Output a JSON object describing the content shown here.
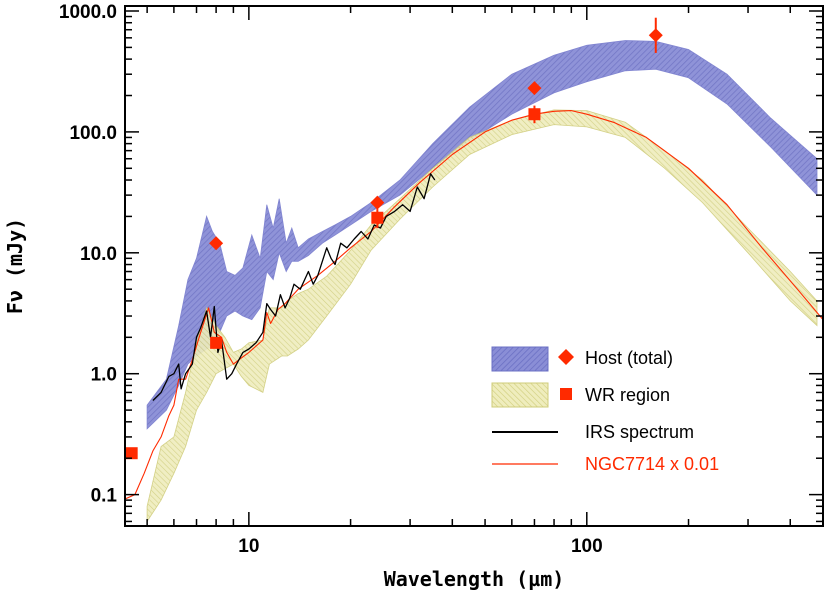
{
  "chart_data": {
    "type": "line",
    "xscale": "log",
    "yscale": "log",
    "xlim": [
      4.3,
      500
    ],
    "ylim": [
      0.055,
      1100
    ],
    "xlabel": "Wavelength (µm)",
    "ylabel": "Fν (mJy)",
    "x_ticks": [
      {
        "value": 10,
        "label": "10"
      },
      {
        "value": 100,
        "label": "100"
      }
    ],
    "y_ticks": [
      {
        "value": 0.1,
        "label": "0.1"
      },
      {
        "value": 1,
        "label": "1.0"
      },
      {
        "value": 10,
        "label": "10.0"
      },
      {
        "value": 100,
        "label": "100.0"
      },
      {
        "value": 1000,
        "label": "1000.0"
      }
    ],
    "colors": {
      "host_band": "#7b7fcf",
      "wr_band": "#e6e4a2",
      "irs_line": "#000000",
      "ngc_line": "#ff2a00",
      "markers": "#ff2a00"
    },
    "series": [
      {
        "name": "Host (total)",
        "kind": "band",
        "x": [
          5,
          5.7,
          6.2,
          6.6,
          7.0,
          7.5,
          7.8,
          8.2,
          8.6,
          9.1,
          9.6,
          10.2,
          10.8,
          11.3,
          11.8,
          12.3,
          12.9,
          13.4,
          14,
          15,
          16.5,
          18,
          20,
          23,
          28,
          35,
          45,
          60,
          80,
          100,
          130,
          160,
          200,
          260,
          350,
          480
        ],
        "upper": [
          0.55,
          0.9,
          2.5,
          6.0,
          9.0,
          20,
          15,
          12,
          7.0,
          6.5,
          7.5,
          14,
          9.0,
          25,
          16,
          28,
          12,
          16,
          11,
          13,
          15,
          17,
          20,
          26,
          40,
          80,
          160,
          300,
          430,
          520,
          570,
          560,
          480,
          300,
          130,
          60
        ],
        "lower": [
          0.35,
          0.5,
          0.8,
          1.2,
          1.4,
          1.6,
          1.7,
          2.2,
          3.0,
          3.3,
          3.0,
          2.8,
          3.5,
          7.0,
          6.0,
          10,
          7.0,
          8.5,
          8.5,
          9.5,
          12,
          14,
          17,
          22,
          30,
          50,
          85,
          140,
          210,
          260,
          320,
          330,
          280,
          170,
          75,
          30
        ]
      },
      {
        "name": "WR region",
        "kind": "band",
        "x": [
          5,
          5.5,
          6.0,
          6.5,
          7.0,
          7.5,
          8.0,
          8.5,
          9.0,
          9.5,
          10,
          11,
          11.5,
          12.5,
          13,
          14,
          15,
          17,
          20,
          23,
          28,
          35,
          45,
          60,
          80,
          100,
          130,
          170,
          220,
          300,
          400,
          480
        ],
        "upper": [
          0.08,
          0.25,
          0.3,
          0.7,
          1.8,
          3.5,
          2.5,
          2.0,
          1.5,
          1.6,
          1.8,
          1.9,
          3.5,
          3.5,
          4.0,
          4.6,
          5.0,
          6.4,
          10.5,
          17,
          28,
          50,
          90,
          125,
          152,
          150,
          120,
          70,
          40,
          16,
          7,
          4
        ],
        "lower": [
          0.06,
          0.09,
          0.15,
          0.25,
          0.5,
          0.7,
          1.0,
          1.1,
          1.2,
          0.95,
          0.8,
          0.7,
          1.2,
          1.4,
          1.4,
          1.6,
          1.9,
          3.0,
          5.5,
          10.5,
          19,
          35,
          65,
          95,
          115,
          110,
          90,
          50,
          26,
          10,
          4,
          2.5
        ]
      },
      {
        "name": "IRS spectrum",
        "kind": "line",
        "x": [
          5.2,
          5.5,
          5.8,
          6.0,
          6.2,
          6.3,
          6.5,
          6.8,
          7.0,
          7.2,
          7.5,
          7.7,
          7.9,
          8.1,
          8.3,
          8.6,
          8.9,
          9.2,
          9.6,
          10.0,
          10.5,
          11.0,
          11.3,
          11.6,
          12.0,
          12.4,
          12.8,
          13.2,
          13.6,
          14.2,
          15.0,
          15.5,
          16.0,
          17.0,
          17.5,
          18.0,
          18.7,
          19.5,
          20.5,
          21.5,
          22.5,
          23.5,
          24.5,
          25.5,
          27.0,
          28.5,
          30.0,
          31.5,
          33.0,
          34.5,
          35.5
        ],
        "y": [
          0.6,
          0.7,
          0.95,
          1.0,
          1.2,
          0.75,
          1.0,
          1.2,
          2.0,
          2.4,
          3.3,
          2.0,
          3.6,
          1.5,
          1.9,
          0.9,
          1.0,
          1.2,
          1.5,
          1.6,
          1.8,
          2.2,
          3.8,
          3.4,
          3.0,
          4.5,
          3.5,
          4.2,
          5.5,
          5.0,
          7.0,
          5.5,
          6.5,
          11,
          9.0,
          8.0,
          12,
          11,
          13,
          15,
          13,
          17,
          16,
          20,
          22,
          25,
          22,
          35,
          28,
          45,
          40
        ]
      },
      {
        "name": "NGC7714 x 0.01",
        "kind": "line",
        "x": [
          4.3,
          4.6,
          4.9,
          5.2,
          5.5,
          5.8,
          6.0,
          6.2,
          6.5,
          6.8,
          7.2,
          7.6,
          7.9,
          8.3,
          8.6,
          9.0,
          9.5,
          10,
          11,
          11.3,
          11.6,
          12.2,
          12.8,
          14,
          16,
          18,
          20,
          23,
          27,
          32,
          40,
          50,
          60,
          70,
          80,
          90,
          100,
          120,
          150,
          200,
          260,
          330,
          420,
          500
        ],
        "y": [
          0.092,
          0.1,
          0.15,
          0.23,
          0.3,
          0.45,
          0.55,
          0.9,
          0.9,
          1.3,
          2.2,
          3.5,
          2.2,
          2.0,
          1.5,
          1.2,
          1.35,
          1.5,
          1.9,
          3.2,
          2.6,
          3.4,
          3.8,
          5.0,
          6.5,
          8.5,
          11,
          15,
          24,
          38,
          65,
          100,
          125,
          140,
          148,
          150,
          140,
          120,
          90,
          50,
          25,
          11,
          5,
          2.8
        ]
      }
    ],
    "points": {
      "host": {
        "name": "Host (total)",
        "marker": "diamond",
        "x": [
          8.0,
          24.0,
          70.0,
          160.0
        ],
        "y": [
          12.0,
          26.0,
          230.0,
          630.0
        ],
        "err_low": [
          null,
          null,
          null,
          450.0
        ],
        "err_high": [
          null,
          null,
          null,
          880.0
        ]
      },
      "wr": {
        "name": "WR region",
        "marker": "square",
        "x": [
          4.5,
          8.0,
          24.0,
          70.0
        ],
        "y": [
          0.22,
          1.8,
          19.5,
          140.0
        ],
        "err_low": [
          null,
          null,
          16.0,
          118.0
        ],
        "err_high": [
          null,
          null,
          23.0,
          165.0
        ]
      }
    },
    "legend": [
      {
        "label": "Host (total)",
        "symbol": "band+diamond"
      },
      {
        "label": "WR region",
        "symbol": "band+square"
      },
      {
        "label": "IRS spectrum",
        "symbol": "line"
      },
      {
        "label": "NGC7714 x 0.01",
        "symbol": "line"
      }
    ],
    "legend_position": "bottom-right"
  }
}
